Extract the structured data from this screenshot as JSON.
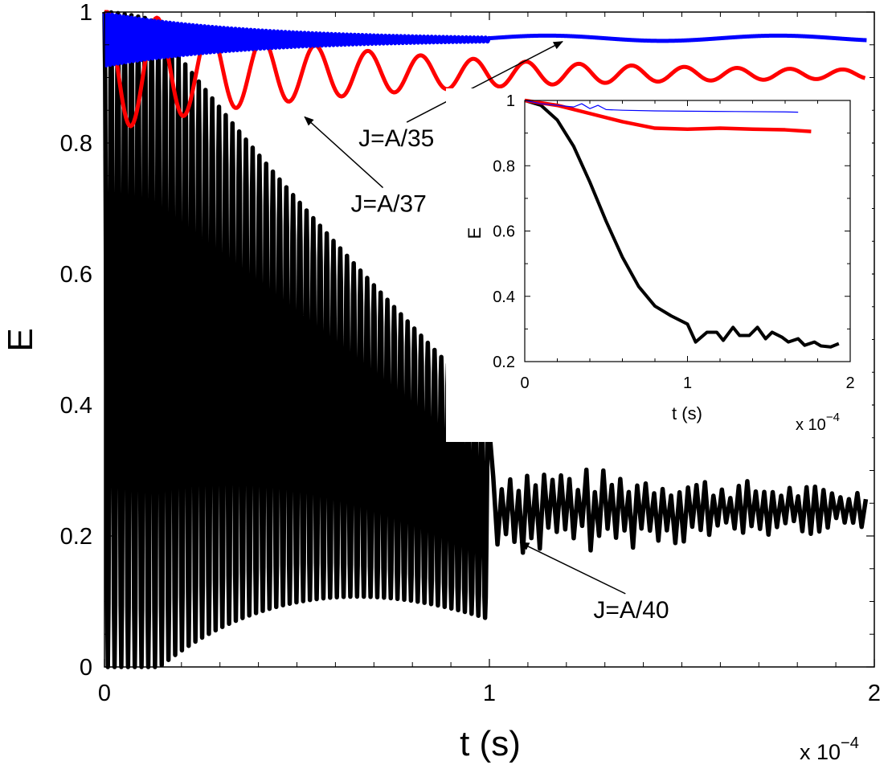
{
  "chart_data": [
    {
      "panel": "main",
      "type": "line",
      "xlabel": "t (s)",
      "ylabel": "E",
      "x_exponent_label": "x 10",
      "x_exponent_power": "−4",
      "xlim": [
        0,
        2
      ],
      "ylim": [
        0,
        1
      ],
      "xticks": [
        "0",
        "1",
        "2"
      ],
      "yticks": [
        "0",
        "0.2",
        "0.4",
        "0.6",
        "0.8",
        "1"
      ],
      "grid": false,
      "series": [
        {
          "color": "#000000",
          "description": "oscillation between about 0 and 1 with ~60 cycles, amplitude decaying until t≈1, then irregular noise around 0.24",
          "t_osc_end": 1.0,
          "osc_period": 0.0175,
          "tail_mean": 0.24,
          "tail_range": [
            0.16,
            0.31
          ]
        },
        {
          "color": "#ff0000",
          "description": "damped oscillation, period about 0.14, settling near 0.90–0.91",
          "period": 0.137,
          "min_first": 0.81,
          "steady": 0.905
        },
        {
          "color": "#0000ff",
          "description": "fast small oscillation between about 0.92 and 1.0 decaying by t≈1, then smooth near 0.955–0.965",
          "osc_period": 0.01,
          "steady": 0.96
        }
      ],
      "annotations": [
        {
          "text": "J=A/35",
          "x": 0.66,
          "y": 0.795,
          "arrow_to": [
            1.19,
            0.955
          ]
        },
        {
          "text": "J=A/37",
          "x": 0.64,
          "y": 0.695,
          "arrow_to": [
            0.52,
            0.84
          ]
        },
        {
          "text": "J=A/40",
          "x": 1.27,
          "y": 0.075,
          "arrow_to": [
            1.08,
            0.19
          ]
        }
      ]
    },
    {
      "panel": "inset",
      "type": "line",
      "xlabel": "t (s)",
      "ylabel": "E",
      "x_exponent_label": "x 10",
      "x_exponent_power": "−4",
      "xlim": [
        0,
        2
      ],
      "ylim": [
        0.2,
        1
      ],
      "xticks": [
        "0",
        "1",
        "2"
      ],
      "yticks": [
        "0.2",
        "0.4",
        "0.6",
        "0.8",
        "1"
      ],
      "grid": false,
      "series": [
        {
          "color": "#000000",
          "x": [
            0,
            0.1,
            0.2,
            0.3,
            0.4,
            0.5,
            0.6,
            0.7,
            0.8,
            0.9,
            1.0,
            1.05,
            1.12,
            1.18,
            1.22,
            1.28,
            1.32,
            1.38,
            1.43,
            1.48,
            1.52,
            1.58,
            1.62,
            1.68,
            1.72,
            1.78,
            1.82,
            1.88,
            1.93
          ],
          "y": [
            1.0,
            0.985,
            0.94,
            0.86,
            0.75,
            0.63,
            0.52,
            0.43,
            0.37,
            0.34,
            0.315,
            0.26,
            0.29,
            0.29,
            0.265,
            0.305,
            0.28,
            0.28,
            0.305,
            0.27,
            0.29,
            0.275,
            0.26,
            0.27,
            0.25,
            0.26,
            0.248,
            0.245,
            0.255
          ]
        },
        {
          "color": "#ff0000",
          "x": [
            0,
            0.2,
            0.4,
            0.6,
            0.8,
            1.0,
            1.2,
            1.4,
            1.6,
            1.76
          ],
          "y": [
            1.0,
            0.985,
            0.96,
            0.935,
            0.915,
            0.912,
            0.915,
            0.912,
            0.91,
            0.905
          ]
        },
        {
          "color": "#0000ff",
          "x": [
            0,
            0.1,
            0.2,
            0.3,
            0.35,
            0.4,
            0.45,
            0.5,
            0.6,
            0.8,
            1.0,
            1.3,
            1.6,
            1.68
          ],
          "y": [
            1.0,
            0.99,
            0.985,
            0.98,
            0.99,
            0.975,
            0.985,
            0.972,
            0.97,
            0.968,
            0.967,
            0.966,
            0.965,
            0.964
          ]
        }
      ]
    }
  ]
}
